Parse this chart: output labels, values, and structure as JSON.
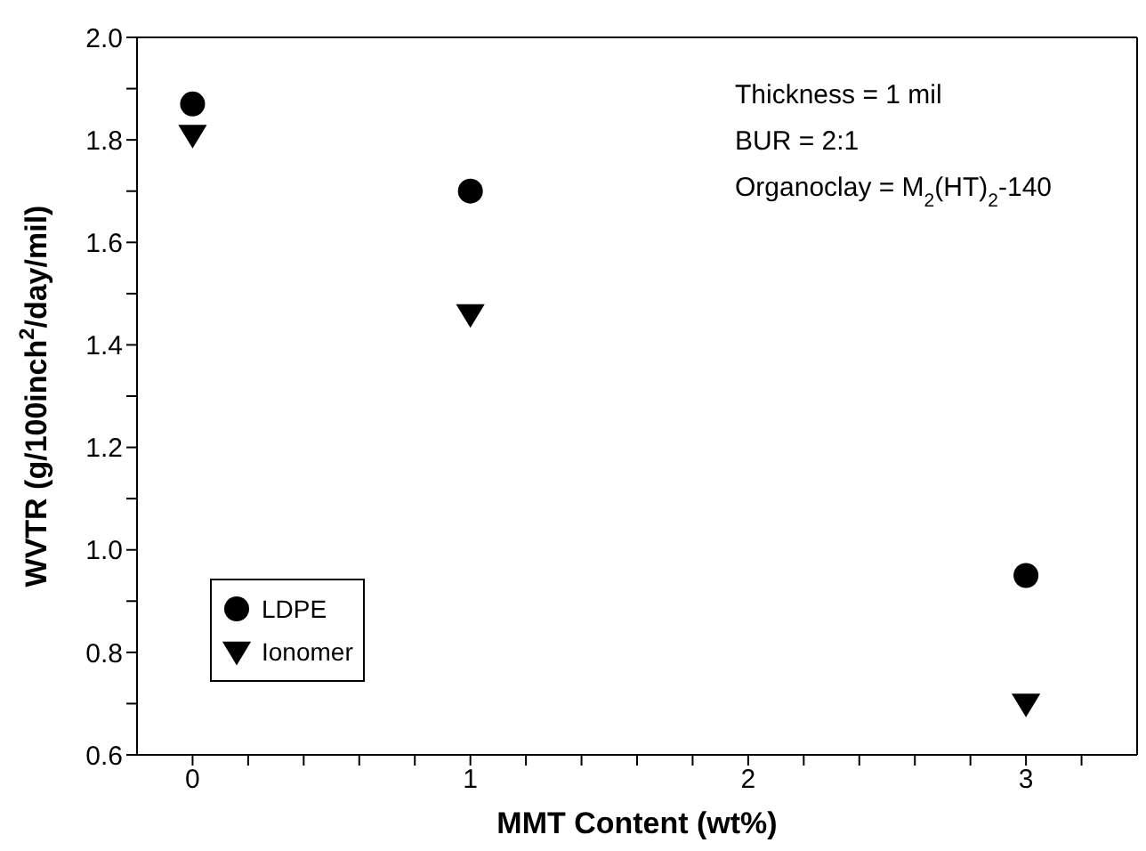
{
  "chart_data": {
    "type": "scatter",
    "xlabel": "MMT Content (wt%)",
    "ylabel": "WVTR (g/100inch$^{2}$/day/mil)",
    "xlim": [
      -0.2,
      3.4
    ],
    "xticks": [
      0,
      {
        "value": 0.2,
        "label": null
      },
      {
        "value": 0.4,
        "label": null
      },
      {
        "value": 0.6,
        "label": null
      },
      {
        "value": 0.8,
        "label": null
      },
      1,
      {
        "value": 1.2,
        "label": null
      },
      {
        "value": 1.4,
        "label": null
      },
      {
        "value": 1.6,
        "label": null
      },
      {
        "value": 1.8,
        "label": null
      },
      2,
      {
        "value": 2.2,
        "label": null
      },
      {
        "value": 2.4,
        "label": null
      },
      {
        "value": 2.6,
        "label": null
      },
      {
        "value": 2.8,
        "label": null
      },
      3,
      {
        "value": 3.2,
        "label": null
      }
    ],
    "ylim": [
      0.6,
      2.0
    ],
    "yticks": [
      0.6,
      {
        "value": 0.7,
        "label": null
      },
      0.8,
      {
        "value": 0.9,
        "label": null
      },
      {
        "value": 1.0,
        "label": "1.0"
      },
      {
        "value": 1.1,
        "label": null
      },
      1.2,
      {
        "value": 1.3,
        "label": null
      },
      1.4,
      {
        "value": 1.5,
        "label": null
      },
      1.6,
      {
        "value": 1.7,
        "label": null
      },
      1.8,
      {
        "value": 1.9,
        "label": null
      },
      {
        "value": 2.0,
        "label": "2.0"
      }
    ],
    "legend": "bottom left",
    "annotations": [
      "Thickness = 1 mil",
      "BUR = 2:1",
      "Organoclay = M$_{2}$(HT)$_{2}$-140"
    ],
    "series": [
      {
        "name": "LDPE",
        "color": "#000000",
        "marker": "circle",
        "x": [
          0,
          1,
          3
        ],
        "values": [
          1.87,
          1.7,
          0.95
        ]
      },
      {
        "name": "Ionomer",
        "color": "#000000",
        "marker": "triangle",
        "x": [
          0,
          1,
          3
        ],
        "values": [
          1.81,
          1.46,
          0.7
        ]
      }
    ]
  }
}
